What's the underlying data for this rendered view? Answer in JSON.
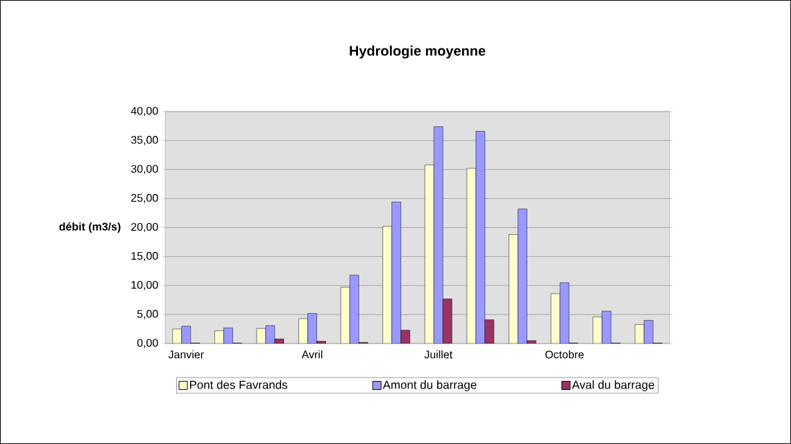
{
  "chart_data": {
    "type": "bar",
    "title": "Hydrologie moyenne",
    "ylabel": "débit (m3/s)",
    "categories": [
      "Janvier",
      null,
      null,
      "Avril",
      null,
      null,
      "Juillet",
      null,
      null,
      "Octobre",
      null,
      null
    ],
    "series": [
      {
        "name": "Pont des Favrands",
        "color": "#ffffcc",
        "values": [
          2.5,
          2.2,
          2.6,
          4.3,
          9.7,
          20.2,
          30.8,
          30.2,
          18.8,
          8.6,
          4.6,
          3.3
        ]
      },
      {
        "name": "Amont du barrage",
        "color": "#9999ff",
        "values": [
          3.0,
          2.7,
          3.1,
          5.2,
          11.8,
          24.4,
          37.4,
          36.6,
          23.2,
          10.5,
          5.6,
          4.0
        ]
      },
      {
        "name": "Aval du barrage",
        "color": "#993366",
        "values": [
          0.1,
          0.1,
          0.8,
          0.4,
          0.2,
          2.3,
          7.7,
          4.1,
          0.5,
          0.1,
          0.1,
          0.1
        ]
      }
    ],
    "ylim": [
      0,
      40
    ],
    "yticks": [
      {
        "value": 0,
        "label": "0,00"
      },
      {
        "value": 5,
        "label": "5,00"
      },
      {
        "value": 10,
        "label": "10,00"
      },
      {
        "value": 15,
        "label": "15,00"
      },
      {
        "value": 20,
        "label": "20,00"
      },
      {
        "value": 25,
        "label": "25,00"
      },
      {
        "value": 30,
        "label": "30,00"
      },
      {
        "value": 35,
        "label": "35,00"
      },
      {
        "value": 40,
        "label": "40,00"
      }
    ],
    "grid": "y",
    "legend": "bottom"
  }
}
